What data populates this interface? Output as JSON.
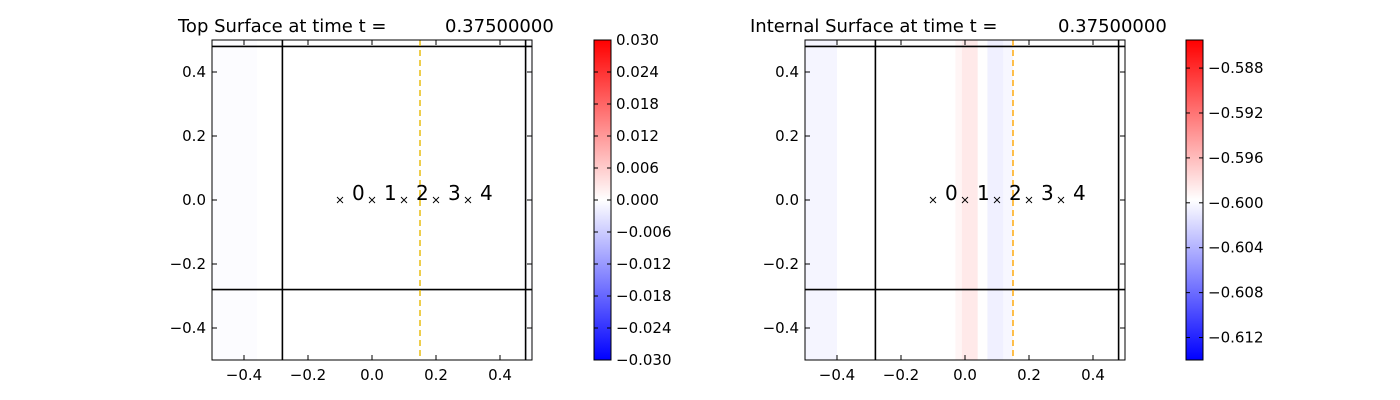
{
  "chart_data": [
    {
      "type": "heatmap",
      "title_prefix": "Top Surface at time t =",
      "time": "0.37500000",
      "xlim": [
        -0.5,
        0.5
      ],
      "ylim": [
        -0.5,
        0.5
      ],
      "xticks": [
        "−0.4",
        "−0.2",
        "0.0",
        "0.2",
        "0.4"
      ],
      "xtick_values": [
        -0.4,
        -0.2,
        0.0,
        0.2,
        0.4
      ],
      "yticks": [
        "−0.4",
        "−0.2",
        "0.0",
        "0.2",
        "0.4"
      ],
      "ytick_values": [
        -0.4,
        -0.2,
        0.0,
        0.2,
        0.4
      ],
      "field_bands": [
        {
          "x0": -0.5,
          "x1": -0.36,
          "value": -0.0003
        },
        {
          "x0": 0.47,
          "x1": 0.5,
          "value": -0.0002
        }
      ],
      "black_lines": {
        "vertical": [
          -0.28,
          0.48
        ],
        "horizontal": [
          -0.28,
          0.48
        ]
      },
      "dashed_line": {
        "x": 0.15,
        "color": "#e6b800"
      },
      "markers": [
        {
          "x": -0.1,
          "y": 0.0,
          "label": "0"
        },
        {
          "x": 0.0,
          "y": 0.0,
          "label": "1"
        },
        {
          "x": 0.1,
          "y": 0.0,
          "label": "2"
        },
        {
          "x": 0.2,
          "y": 0.0,
          "label": "3"
        },
        {
          "x": 0.3,
          "y": 0.0,
          "label": "4"
        }
      ],
      "colorbar": {
        "min": -0.03,
        "max": 0.03,
        "ticks": [
          "0.030",
          "0.024",
          "0.018",
          "0.012",
          "0.006",
          "0.000",
          "−0.006",
          "−0.012",
          "−0.018",
          "−0.024",
          "−0.030"
        ],
        "tick_values": [
          0.03,
          0.024,
          0.018,
          0.012,
          0.006,
          0.0,
          -0.006,
          -0.012,
          -0.018,
          -0.024,
          -0.03
        ]
      }
    },
    {
      "type": "heatmap",
      "title_prefix": "Internal Surface at time t =",
      "time": "0.37500000",
      "xlim": [
        -0.5,
        0.5
      ],
      "ylim": [
        -0.5,
        0.5
      ],
      "xticks": [
        "−0.4",
        "−0.2",
        "0.0",
        "0.2",
        "0.4"
      ],
      "xtick_values": [
        -0.4,
        -0.2,
        0.0,
        0.2,
        0.4
      ],
      "yticks": [
        "−0.4",
        "−0.2",
        "0.0",
        "0.2",
        "0.4"
      ],
      "ytick_values": [
        -0.4,
        -0.2,
        0.0,
        0.2,
        0.4
      ],
      "field_bands": [
        {
          "x0": -0.5,
          "x1": -0.4,
          "value": -0.6003
        },
        {
          "x0": -0.03,
          "x1": -0.01,
          "value": -0.5992
        },
        {
          "x0": -0.01,
          "x1": 0.04,
          "value": -0.5985
        },
        {
          "x0": 0.04,
          "x1": 0.07,
          "value": -0.5997
        },
        {
          "x0": 0.07,
          "x1": 0.12,
          "value": -0.6006
        },
        {
          "x0": 0.12,
          "x1": 0.15,
          "value": -0.6002
        }
      ],
      "black_lines": {
        "vertical": [
          -0.28,
          0.48
        ],
        "horizontal": [
          -0.28,
          0.48
        ]
      },
      "dashed_line": {
        "x": 0.15,
        "color": "#ffa500"
      },
      "markers": [
        {
          "x": -0.1,
          "y": 0.0,
          "label": "0"
        },
        {
          "x": 0.0,
          "y": 0.0,
          "label": "1"
        },
        {
          "x": 0.1,
          "y": 0.0,
          "label": "2"
        },
        {
          "x": 0.2,
          "y": 0.0,
          "label": "3"
        },
        {
          "x": 0.3,
          "y": 0.0,
          "label": "4"
        }
      ],
      "colorbar": {
        "min": -0.614,
        "max": -0.5855,
        "ticks": [
          "−0.588",
          "−0.592",
          "−0.596",
          "−0.600",
          "−0.604",
          "−0.608",
          "−0.612"
        ],
        "tick_values": [
          -0.588,
          -0.592,
          -0.596,
          -0.6,
          -0.604,
          -0.608,
          -0.612
        ]
      }
    }
  ]
}
